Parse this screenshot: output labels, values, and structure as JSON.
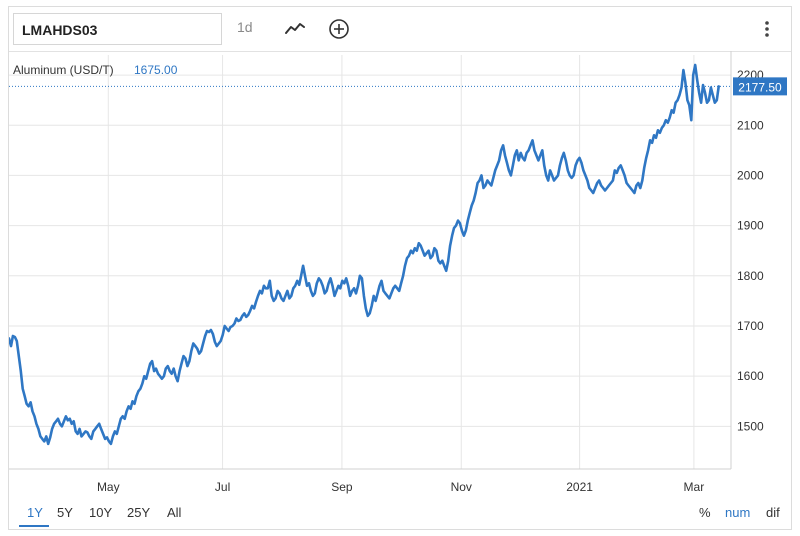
{
  "toolbar": {
    "symbol": "LMAHDS03",
    "interval": "1d",
    "icons": [
      "line-chart-icon",
      "add-circle-icon",
      "more-vertical-icon"
    ]
  },
  "legend": {
    "label": "Aluminum (USD/T)",
    "value": "1675.00"
  },
  "range_buttons": [
    "1Y",
    "5Y",
    "10Y",
    "25Y",
    "All"
  ],
  "active_range": "1Y",
  "mode_buttons": [
    "%",
    "num",
    "dif"
  ],
  "active_mode": "num",
  "colors": {
    "line": "#2f77c4",
    "grid": "#e6e6e6",
    "axis_text": "#333333",
    "last_badge": "#2f77c4"
  },
  "chart_data": {
    "type": "line",
    "series": [
      {
        "values": [
          1675,
          1660,
          1680,
          1678,
          1670,
          1640,
          1610,
          1575,
          1560,
          1545,
          1540,
          1548,
          1530,
          1520,
          1505,
          1495,
          1480,
          1475,
          1470,
          1480,
          1465,
          1478,
          1495,
          1505,
          1510,
          1515,
          1505,
          1500,
          1510,
          1520,
          1512,
          1515,
          1505,
          1510,
          1490,
          1485,
          1495,
          1480,
          1485,
          1490,
          1488,
          1480,
          1475,
          1490,
          1495,
          1500,
          1505,
          1495,
          1485,
          1475,
          1478,
          1470,
          1465,
          1480,
          1490,
          1485,
          1500,
          1515,
          1520,
          1515,
          1530,
          1540,
          1535,
          1550,
          1545,
          1560,
          1570,
          1575,
          1585,
          1600,
          1595,
          1610,
          1625,
          1630,
          1610,
          1615,
          1605,
          1600,
          1595,
          1600,
          1615,
          1620,
          1610,
          1605,
          1615,
          1600,
          1590,
          1610,
          1625,
          1640,
          1635,
          1620,
          1630,
          1650,
          1665,
          1660,
          1655,
          1645,
          1650,
          1665,
          1680,
          1690,
          1688,
          1692,
          1684,
          1668,
          1660,
          1665,
          1670,
          1682,
          1700,
          1695,
          1690,
          1698,
          1700,
          1705,
          1715,
          1710,
          1712,
          1720,
          1725,
          1718,
          1722,
          1730,
          1740,
          1735,
          1748,
          1760,
          1770,
          1765,
          1780,
          1775,
          1775,
          1790,
          1760,
          1750,
          1755,
          1770,
          1765,
          1755,
          1750,
          1760,
          1770,
          1755,
          1760,
          1775,
          1780,
          1790,
          1782,
          1800,
          1820,
          1800,
          1780,
          1785,
          1770,
          1760,
          1765,
          1785,
          1795,
          1790,
          1780,
          1765,
          1770,
          1785,
          1795,
          1780,
          1760,
          1770,
          1780,
          1775,
          1790,
          1785,
          1795,
          1780,
          1760,
          1770,
          1775,
          1765,
          1780,
          1800,
          1795,
          1760,
          1735,
          1720,
          1725,
          1740,
          1760,
          1750,
          1765,
          1780,
          1790,
          1770,
          1765,
          1760,
          1755,
          1765,
          1775,
          1780,
          1775,
          1770,
          1785,
          1800,
          1820,
          1835,
          1840,
          1850,
          1845,
          1855,
          1850,
          1865,
          1860,
          1850,
          1840,
          1845,
          1850,
          1835,
          1840,
          1855,
          1850,
          1830,
          1825,
          1830,
          1820,
          1810,
          1830,
          1860,
          1880,
          1895,
          1900,
          1910,
          1905,
          1890,
          1880,
          1890,
          1910,
          1925,
          1940,
          1950,
          1965,
          1985,
          1990,
          2000,
          1975,
          1980,
          1990,
          1985,
          1980,
          1995,
          2010,
          2020,
          2030,
          2050,
          2060,
          2040,
          2025,
          2010,
          2000,
          2020,
          2040,
          2050,
          2030,
          2045,
          2035,
          2030,
          2045,
          2050,
          2060,
          2070,
          2050,
          2040,
          2030,
          2040,
          2050,
          2020,
          2000,
          1990,
          2010,
          2000,
          1990,
          1995,
          2000,
          2020,
          2035,
          2045,
          2030,
          2010,
          2000,
          1995,
          2000,
          2020,
          2030,
          2035,
          2025,
          2010,
          2000,
          1990,
          1975,
          1970,
          1965,
          1975,
          1985,
          1990,
          1980,
          1975,
          1970,
          1975,
          1980,
          1985,
          1990,
          2010,
          2005,
          2015,
          2020,
          2010,
          2000,
          1985,
          1980,
          1975,
          1970,
          1965,
          1980,
          1985,
          1975,
          1990,
          2015,
          2035,
          2050,
          2070,
          2065,
          2080,
          2075,
          2090,
          2085,
          2095,
          2100,
          2110,
          2105,
          2115,
          2130,
          2125,
          2145,
          2150,
          2160,
          2175,
          2210,
          2185,
          2150,
          2140,
          2110,
          2200,
          2220,
          2190,
          2165,
          2145,
          2180,
          2165,
          2145,
          2150,
          2175,
          2160,
          2145,
          2150,
          2177.5
        ]
      }
    ],
    "x_tick_labels": [
      "May",
      "Jul",
      "Sep",
      "Nov",
      "2021",
      "Mar"
    ],
    "y_ticks": [
      1500,
      1600,
      1700,
      1800,
      1900,
      2000,
      2100,
      2200
    ],
    "ylim": [
      1415,
      2240
    ],
    "last_value": "2177.50",
    "grid": true
  }
}
